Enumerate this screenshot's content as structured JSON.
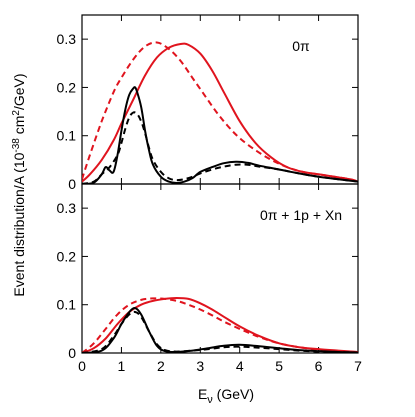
{
  "chart_data": {
    "type": "line",
    "xlabel_main": "E",
    "xlabel_sub": "ν",
    "xlabel_unit": " (GeV)",
    "ylabel_main": "Event distribution/A (10",
    "ylabel_exp": "-38",
    "ylabel_mid": " cm",
    "ylabel_exp2": "2",
    "ylabel_end": "/GeV)",
    "xlim": [
      0,
      7
    ],
    "xticks": [
      "0",
      "1",
      "2",
      "3",
      "4",
      "5",
      "6",
      "7"
    ],
    "grid": false,
    "panels": [
      {
        "label": "0π",
        "ylim": [
          0,
          0.35
        ],
        "yticks": [
          "0",
          "0.1",
          "0.2",
          "0.3"
        ],
        "series": [
          {
            "color": "#e0141e",
            "dash": "solid",
            "x": [
              0,
              0.2,
              0.5,
              0.8,
              1.0,
              1.3,
              1.6,
              1.9,
              2.2,
              2.5,
              2.7,
              3.0,
              3.3,
              3.6,
              4.0,
              4.4,
              4.8,
              5.2,
              5.6,
              6.0,
              6.4,
              6.8,
              7.0
            ],
            "y": [
              0.005,
              0.02,
              0.05,
              0.09,
              0.125,
              0.175,
              0.225,
              0.262,
              0.282,
              0.29,
              0.288,
              0.27,
              0.235,
              0.19,
              0.13,
              0.085,
              0.055,
              0.035,
              0.025,
              0.02,
              0.015,
              0.01,
              0.005
            ]
          },
          {
            "color": "#e0141e",
            "dash": "dashed",
            "x": [
              0,
              0.2,
              0.5,
              0.8,
              1.0,
              1.3,
              1.6,
              1.9,
              2.2,
              2.5,
              2.8,
              3.1,
              3.4,
              3.7,
              4.0,
              4.4,
              4.8,
              5.2,
              5.6,
              6.0,
              6.4,
              6.8,
              7.0
            ],
            "y": [
              0.01,
              0.06,
              0.13,
              0.19,
              0.22,
              0.258,
              0.285,
              0.293,
              0.28,
              0.255,
              0.22,
              0.185,
              0.15,
              0.12,
              0.095,
              0.07,
              0.05,
              0.035,
              0.025,
              0.02,
              0.015,
              0.01,
              0.005
            ]
          },
          {
            "color": "#000000",
            "dash": "solid",
            "x": [
              0,
              0.3,
              0.5,
              0.6,
              0.7,
              0.8,
              0.9,
              1.0,
              1.1,
              1.2,
              1.3,
              1.35,
              1.4,
              1.5,
              1.6,
              1.7,
              1.8,
              2.0,
              2.2,
              2.4,
              2.6,
              2.8,
              3.0,
              3.3,
              3.6,
              3.9,
              4.2,
              4.5,
              5.0,
              5.5,
              6.0,
              6.5,
              7.0
            ],
            "y": [
              0,
              0.003,
              0.02,
              0.035,
              0.028,
              0.025,
              0.06,
              0.11,
              0.155,
              0.185,
              0.198,
              0.2,
              0.19,
              0.16,
              0.11,
              0.07,
              0.04,
              0.015,
              0.005,
              0.002,
              0.005,
              0.012,
              0.025,
              0.035,
              0.043,
              0.046,
              0.044,
              0.038,
              0.03,
              0.022,
              0.015,
              0.01,
              0.005
            ]
          },
          {
            "color": "#000000",
            "dash": "dashed",
            "x": [
              0,
              0.3,
              0.5,
              0.7,
              0.9,
              1.0,
              1.1,
              1.2,
              1.3,
              1.4,
              1.5,
              1.6,
              1.7,
              1.8,
              2.0,
              2.2,
              2.4,
              2.6,
              2.8,
              3.0,
              3.3,
              3.6,
              3.9,
              4.2,
              4.5,
              5.0,
              5.5,
              6.0,
              6.5,
              7.0
            ],
            "y": [
              0,
              0.005,
              0.02,
              0.035,
              0.06,
              0.085,
              0.115,
              0.138,
              0.148,
              0.145,
              0.13,
              0.105,
              0.075,
              0.05,
              0.025,
              0.012,
              0.008,
              0.01,
              0.015,
              0.022,
              0.03,
              0.036,
              0.04,
              0.04,
              0.036,
              0.03,
              0.022,
              0.015,
              0.01,
              0.005
            ]
          }
        ]
      },
      {
        "label": "0π + 1p + Xn",
        "ylim": [
          0,
          0.35
        ],
        "yticks": [
          "0",
          "0.1",
          "0.2",
          "0.3"
        ],
        "series": [
          {
            "color": "#e0141e",
            "dash": "solid",
            "x": [
              0,
              0.3,
              0.6,
              0.9,
              1.2,
              1.5,
              1.8,
              2.1,
              2.4,
              2.7,
              3.0,
              3.3,
              3.6,
              4.0,
              4.5,
              5.0,
              5.5,
              6.0,
              6.5,
              7.0
            ],
            "y": [
              0,
              0.01,
              0.03,
              0.06,
              0.085,
              0.1,
              0.108,
              0.112,
              0.114,
              0.112,
              0.103,
              0.09,
              0.075,
              0.055,
              0.035,
              0.02,
              0.012,
              0.008,
              0.005,
              0.002
            ]
          },
          {
            "color": "#e0141e",
            "dash": "dashed",
            "x": [
              0,
              0.3,
              0.6,
              0.9,
              1.2,
              1.5,
              1.8,
              2.1,
              2.4,
              2.7,
              3.0,
              3.3,
              3.6,
              4.0,
              4.5,
              5.0,
              5.5,
              6.0,
              6.5,
              7.0
            ],
            "y": [
              0,
              0.02,
              0.05,
              0.08,
              0.1,
              0.11,
              0.113,
              0.112,
              0.108,
              0.1,
              0.09,
              0.078,
              0.065,
              0.05,
              0.033,
              0.02,
              0.012,
              0.007,
              0.004,
              0.002
            ]
          },
          {
            "color": "#000000",
            "dash": "solid",
            "x": [
              0,
              0.5,
              0.8,
              1.0,
              1.2,
              1.35,
              1.5,
              1.7,
              1.9,
              2.1,
              2.4,
              2.8,
              3.2,
              3.6,
              4.0,
              4.5,
              5.0,
              5.5,
              6.0,
              6.5,
              7.0
            ],
            "y": [
              0,
              0.005,
              0.03,
              0.06,
              0.085,
              0.093,
              0.08,
              0.045,
              0.015,
              0.004,
              0.002,
              0.005,
              0.01,
              0.015,
              0.017,
              0.014,
              0.01,
              0.006,
              0.004,
              0.002,
              0.001
            ]
          },
          {
            "color": "#000000",
            "dash": "dashed",
            "x": [
              0,
              0.5,
              0.8,
              1.0,
              1.2,
              1.35,
              1.5,
              1.7,
              1.9,
              2.1,
              2.4,
              2.8,
              3.2,
              3.6,
              4.0,
              4.5,
              5.0,
              5.5,
              6.0,
              6.5,
              7.0
            ],
            "y": [
              0,
              0.008,
              0.035,
              0.06,
              0.08,
              0.085,
              0.075,
              0.045,
              0.018,
              0.006,
              0.003,
              0.005,
              0.008,
              0.012,
              0.013,
              0.011,
              0.008,
              0.005,
              0.003,
              0.002,
              0.001
            ]
          }
        ]
      }
    ]
  }
}
